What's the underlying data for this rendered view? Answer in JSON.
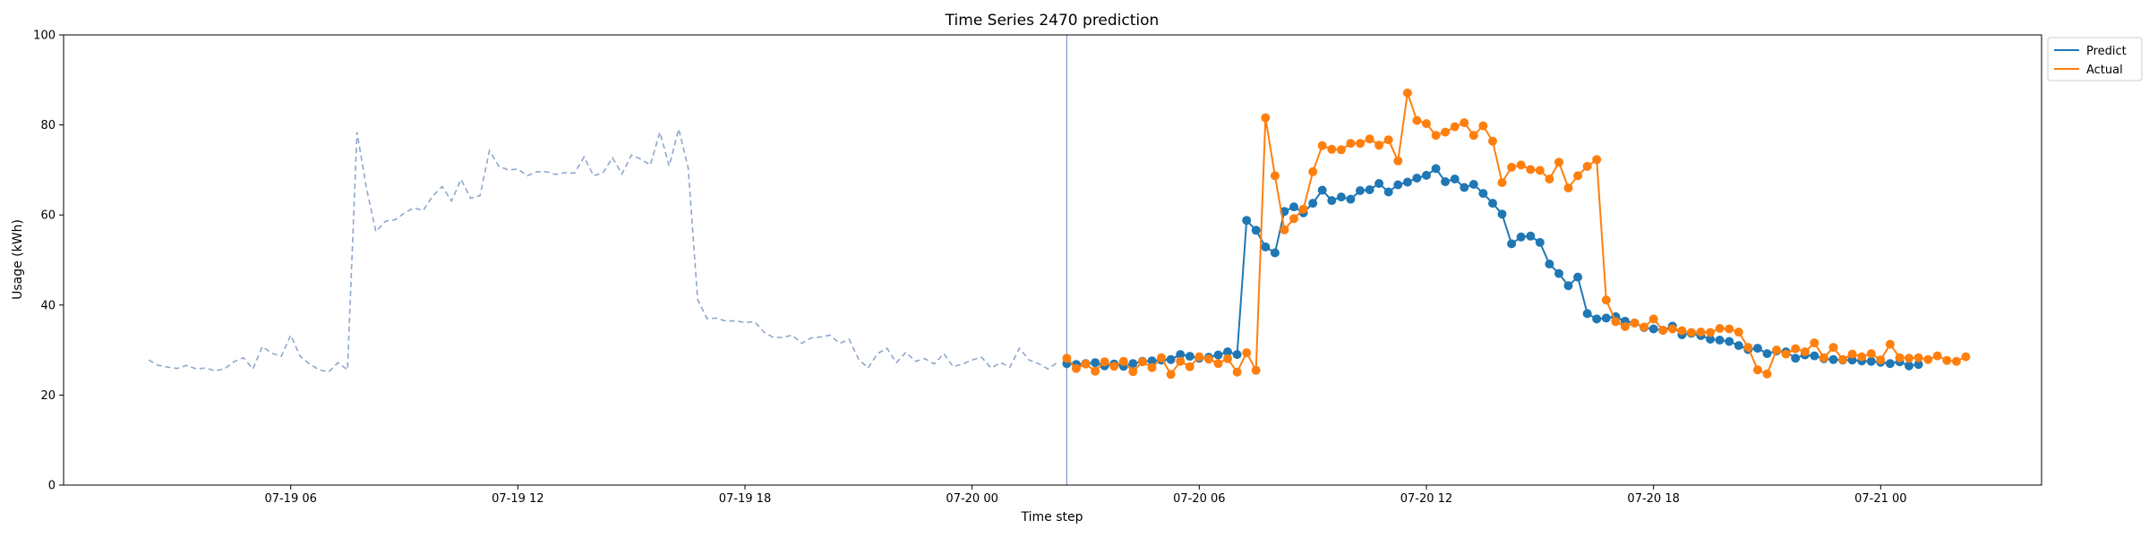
{
  "chart_data": {
    "type": "line",
    "title": "Time Series 2470 prediction",
    "xlabel": "Time step",
    "ylabel": "Usage (kWh)",
    "ylim": [
      0,
      100
    ],
    "yticks": [
      0,
      20,
      40,
      60,
      80,
      100
    ],
    "xlim": [
      "07-19 00:00",
      "07-21 04:15"
    ],
    "xticks": [
      {
        "at": "07-19 06:00",
        "label": "07-19 06"
      },
      {
        "at": "07-19 12:00",
        "label": "07-19 12"
      },
      {
        "at": "07-19 18:00",
        "label": "07-19 18"
      },
      {
        "at": "07-20 00:00",
        "label": "07-20 00"
      },
      {
        "at": "07-20 06:00",
        "label": "07-20 06"
      },
      {
        "at": "07-20 12:00",
        "label": "07-20 12"
      },
      {
        "at": "07-20 18:00",
        "label": "07-20 18"
      },
      {
        "at": "07-21 00:00",
        "label": "07-21 00"
      }
    ],
    "grid": false,
    "legend_position": "outside-top-right",
    "vline": {
      "x": "07-20 02:30",
      "color": "#7b96c8"
    },
    "history": {
      "start": "07-19 02:15",
      "step_minutes": 15,
      "style": "dashed",
      "color": "#8fa7cc",
      "values": [
        27.8,
        26.6,
        26.2,
        25.9,
        26.6,
        25.8,
        26.0,
        25.4,
        25.8,
        27.4,
        28.3,
        25.8,
        30.8,
        29.3,
        28.6,
        33.3,
        28.6,
        26.9,
        25.6,
        25.1,
        27.2,
        25.6,
        78.4,
        66.0,
        56.3,
        58.6,
        58.9,
        60.4,
        61.6,
        61.0,
        64.2,
        66.3,
        63.1,
        67.9,
        63.7,
        64.3,
        74.3,
        70.8,
        70.0,
        70.2,
        68.7,
        69.6,
        69.6,
        69.0,
        69.4,
        69.3,
        72.9,
        68.7,
        69.4,
        72.7,
        69.1,
        73.3,
        72.4,
        71.1,
        78.4,
        70.9,
        79.1,
        70.4,
        41.2,
        37.0,
        37.1,
        36.4,
        36.5,
        36.1,
        36.3,
        34.0,
        32.8,
        32.8,
        33.3,
        31.5,
        32.7,
        32.9,
        33.3,
        31.5,
        32.4,
        28.0,
        26.0,
        29.2,
        30.4,
        27.2,
        29.5,
        27.5,
        28.1,
        26.9,
        29.2,
        26.3,
        26.9,
        27.8,
        28.4,
        26.0,
        27.2,
        26.2,
        30.4,
        27.8,
        27.0,
        25.8,
        27.2
      ]
    },
    "series": [
      {
        "name": "Predict",
        "color": "#1f77b4",
        "start": "07-20 02:30",
        "step_minutes": 15,
        "values": [
          27.0,
          26.8,
          27.0,
          27.2,
          26.5,
          26.9,
          26.4,
          27.0,
          27.5,
          27.6,
          27.8,
          27.9,
          29.0,
          28.6,
          28.2,
          28.4,
          28.9,
          29.6,
          29.0,
          58.8,
          56.6,
          52.9,
          51.6,
          60.8,
          61.8,
          60.5,
          62.6,
          65.5,
          63.2,
          64.0,
          63.5,
          65.4,
          65.6,
          67.0,
          65.1,
          66.7,
          67.3,
          68.2,
          68.8,
          70.3,
          67.4,
          68.0,
          66.1,
          66.8,
          64.8,
          62.6,
          60.2,
          53.6,
          55.1,
          55.3,
          53.9,
          49.1,
          47.0,
          44.3,
          46.2,
          38.1,
          36.9,
          37.1,
          37.4,
          36.4,
          36.0,
          35.0,
          34.7,
          34.4,
          35.3,
          33.4,
          33.7,
          33.2,
          32.4,
          32.2,
          31.9,
          31.0,
          30.1,
          30.4,
          29.2,
          29.8,
          29.6,
          28.2,
          28.9,
          28.7,
          28.1,
          27.9,
          27.8,
          27.8,
          27.6,
          27.5,
          27.3,
          27.0,
          27.4,
          26.5,
          26.8
        ]
      },
      {
        "name": "Actual",
        "color": "#ff7f0e",
        "start": "07-20 02:30",
        "step_minutes": 15,
        "values": [
          28.2,
          25.9,
          26.9,
          25.3,
          27.4,
          26.4,
          27.5,
          25.2,
          27.4,
          26.1,
          28.3,
          24.6,
          27.5,
          26.3,
          28.5,
          28.0,
          27.0,
          28.1,
          25.1,
          29.4,
          25.5,
          81.6,
          68.7,
          56.7,
          59.2,
          61.3,
          69.6,
          75.4,
          74.6,
          74.5,
          75.9,
          75.9,
          76.9,
          75.5,
          76.7,
          72.0,
          87.1,
          81.0,
          80.3,
          77.7,
          78.4,
          79.6,
          80.5,
          77.7,
          79.8,
          76.4,
          67.2,
          70.6,
          71.1,
          70.1,
          69.9,
          68.0,
          71.7,
          66.0,
          68.7,
          70.8,
          72.3,
          41.1,
          36.3,
          35.2,
          36.0,
          35.1,
          36.9,
          34.4,
          34.7,
          34.3,
          33.9,
          34.0,
          33.9,
          34.8,
          34.7,
          34.0,
          30.6,
          25.6,
          24.7,
          30.0,
          29.1,
          30.3,
          29.6,
          31.6,
          28.3,
          30.6,
          27.9,
          29.1,
          28.5,
          29.2,
          27.8,
          31.3,
          28.3,
          28.2,
          28.3,
          27.9,
          28.7,
          27.7,
          27.5,
          28.5
        ]
      }
    ]
  }
}
